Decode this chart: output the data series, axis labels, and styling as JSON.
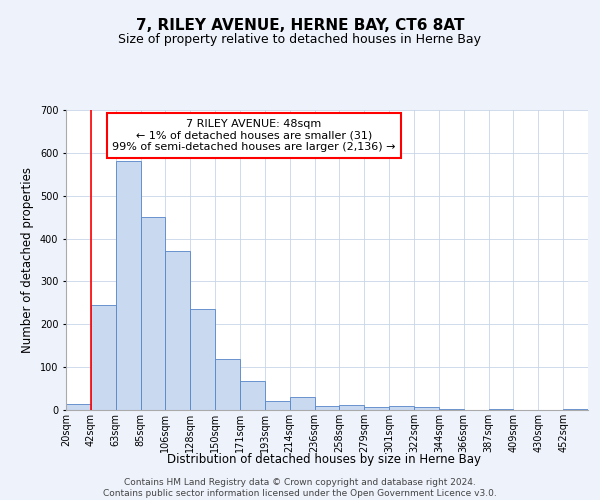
{
  "title": "7, RILEY AVENUE, HERNE BAY, CT6 8AT",
  "subtitle": "Size of property relative to detached houses in Herne Bay",
  "xlabel": "Distribution of detached houses by size in Herne Bay",
  "ylabel": "Number of detached properties",
  "bin_labels": [
    "20sqm",
    "42sqm",
    "63sqm",
    "85sqm",
    "106sqm",
    "128sqm",
    "150sqm",
    "171sqm",
    "193sqm",
    "214sqm",
    "236sqm",
    "258sqm",
    "279sqm",
    "301sqm",
    "322sqm",
    "344sqm",
    "366sqm",
    "387sqm",
    "409sqm",
    "430sqm",
    "452sqm"
  ],
  "bar_heights": [
    15,
    245,
    580,
    450,
    370,
    235,
    120,
    68,
    20,
    30,
    10,
    12,
    7,
    10,
    7,
    3,
    0,
    3,
    0,
    0,
    2
  ],
  "bar_color": "#c9d9f0",
  "bar_edge_color": "#5585c8",
  "red_line_x": 1,
  "ylim": [
    0,
    700
  ],
  "yticks": [
    0,
    100,
    200,
    300,
    400,
    500,
    600,
    700
  ],
  "annotation_title": "7 RILEY AVENUE: 48sqm",
  "annotation_line1": "← 1% of detached houses are smaller (31)",
  "annotation_line2": "99% of semi-detached houses are larger (2,136) →",
  "footer_line1": "Contains HM Land Registry data © Crown copyright and database right 2024.",
  "footer_line2": "Contains public sector information licensed under the Open Government Licence v3.0.",
  "background_color": "#eef2fb",
  "plot_bg_color": "#ffffff",
  "grid_color": "#c8d4e8",
  "title_fontsize": 11,
  "subtitle_fontsize": 9,
  "axis_label_fontsize": 8.5,
  "tick_fontsize": 7,
  "footer_fontsize": 6.5,
  "annotation_fontsize": 8
}
